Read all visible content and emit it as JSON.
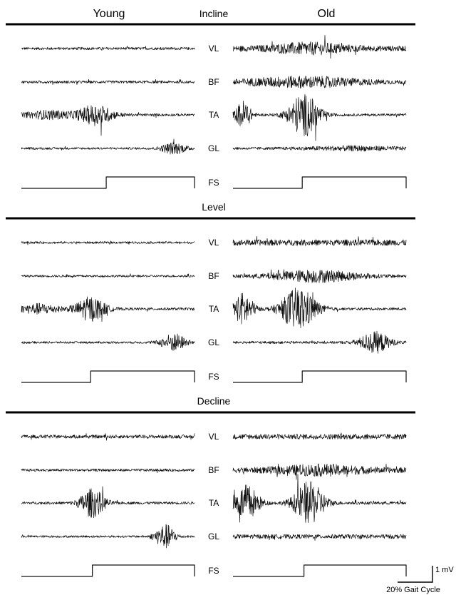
{
  "chart_data": {
    "type": "line",
    "columns": [
      "Young",
      "Old"
    ],
    "x_scale": {
      "label": "20% Gait Cycle"
    },
    "y_scale": {
      "label": "1 mV"
    },
    "panels": [
      {
        "condition": "Incline",
        "young": {
          "VL": {
            "amp": 0.06,
            "bursts": []
          },
          "BF": {
            "amp": 0.06,
            "bursts": []
          },
          "TA": {
            "amp": 0.06,
            "bursts": [
              [
                0.16,
                0.1,
                0.18
              ],
              [
                0.43,
                0.07,
                0.45
              ]
            ]
          },
          "GL": {
            "amp": 0.05,
            "bursts": [
              [
                0.88,
                0.05,
                0.25
              ]
            ]
          },
          "FS_onset": 0.49
        },
        "old": {
          "VL": {
            "amp": 0.12,
            "bursts": [
              [
                0.44,
                0.16,
                0.2
              ]
            ]
          },
          "BF": {
            "amp": 0.08,
            "bursts": [
              [
                0.4,
                0.25,
                0.22
              ]
            ]
          },
          "TA": {
            "amp": 0.06,
            "bursts": [
              [
                0.06,
                0.03,
                0.65
              ],
              [
                0.41,
                0.06,
                1.0
              ]
            ]
          },
          "GL": {
            "amp": 0.06,
            "bursts": [
              [
                0.7,
                0.2,
                0.08
              ]
            ]
          },
          "FS_onset": 0.4
        }
      },
      {
        "condition": "Level",
        "young": {
          "VL": {
            "amp": 0.05,
            "bursts": []
          },
          "BF": {
            "amp": 0.05,
            "bursts": []
          },
          "TA": {
            "amp": 0.06,
            "bursts": [
              [
                0.1,
                0.08,
                0.22
              ],
              [
                0.4,
                0.06,
                0.55
              ]
            ]
          },
          "GL": {
            "amp": 0.05,
            "bursts": [
              [
                0.88,
                0.05,
                0.4
              ]
            ]
          },
          "FS_onset": 0.4
        },
        "old": {
          "VL": {
            "amp": 0.14,
            "bursts": []
          },
          "BF": {
            "amp": 0.07,
            "bursts": [
              [
                0.48,
                0.18,
                0.25
              ]
            ]
          },
          "TA": {
            "amp": 0.06,
            "bursts": [
              [
                0.06,
                0.04,
                0.75
              ],
              [
                0.38,
                0.07,
                1.0
              ]
            ]
          },
          "GL": {
            "amp": 0.06,
            "bursts": [
              [
                0.82,
                0.06,
                0.48
              ]
            ]
          },
          "FS_onset": 0.4
        }
      },
      {
        "condition": "Decline",
        "young": {
          "VL": {
            "amp": 0.08,
            "bursts": []
          },
          "BF": {
            "amp": 0.06,
            "bursts": []
          },
          "TA": {
            "amp": 0.06,
            "bursts": [
              [
                0.41,
                0.05,
                0.65
              ]
            ]
          },
          "GL": {
            "amp": 0.05,
            "bursts": [
              [
                0.83,
                0.04,
                0.55
              ]
            ]
          },
          "FS_onset": 0.41
        },
        "old": {
          "VL": {
            "amp": 0.12,
            "bursts": []
          },
          "BF": {
            "amp": 0.12,
            "bursts": [
              [
                0.5,
                0.18,
                0.18
              ]
            ]
          },
          "TA": {
            "amp": 0.07,
            "bursts": [
              [
                0.08,
                0.05,
                0.8
              ],
              [
                0.44,
                0.06,
                1.0
              ]
            ]
          },
          "GL": {
            "amp": 0.1,
            "bursts": []
          },
          "FS_onset": 0.41
        }
      }
    ]
  }
}
